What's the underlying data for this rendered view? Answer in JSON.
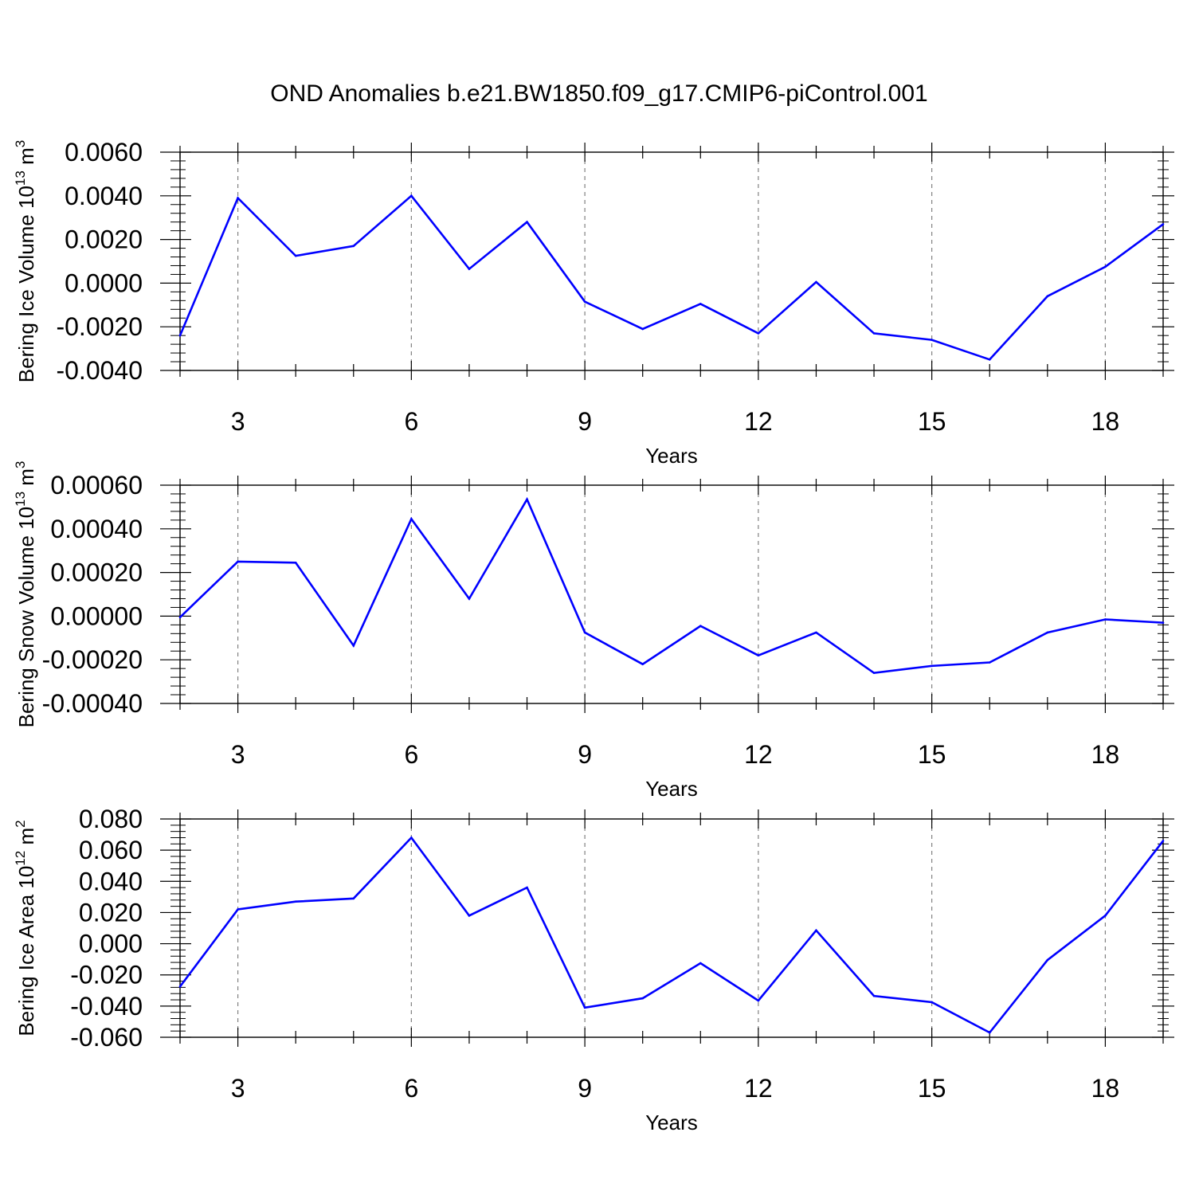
{
  "title": "OND Anomalies b.e21.BW1850.f09_g17.CMIP6-piControl.001",
  "colors": {
    "series": "#0000ff",
    "axes": "#000000",
    "grid": "#808080"
  },
  "chart_data": [
    {
      "type": "line",
      "ylabel": "Bering Ice Volume 10",
      "ylabel_exp": "13",
      "ylabel_unit": " m",
      "ylabel_unit_exp": "3",
      "xlabel": "Years",
      "xlim": [
        2,
        19
      ],
      "ylim": [
        -0.004,
        0.006
      ],
      "xticks": [
        3,
        6,
        9,
        12,
        15,
        18
      ],
      "x_tick_labels": [
        "3",
        "6",
        "9",
        "12",
        "15",
        "18"
      ],
      "yticks": [
        -0.004,
        -0.002,
        0.0,
        0.002,
        0.004,
        0.006
      ],
      "y_tick_labels": [
        "-0.0040",
        "-0.0020",
        "0.0000",
        "0.0020",
        "0.0040",
        "0.0060"
      ],
      "x_grid": true,
      "x": [
        2,
        3,
        4,
        5,
        6,
        7,
        8,
        9,
        10,
        11,
        12,
        13,
        14,
        15,
        16,
        17,
        18,
        19
      ],
      "values": [
        -0.0024,
        0.0039,
        0.00125,
        0.0017,
        0.004,
        0.00065,
        0.0028,
        -0.00085,
        -0.0021,
        -0.00095,
        -0.0023,
        5e-05,
        -0.0023,
        -0.0026,
        -0.0035,
        -0.0006,
        0.00075,
        0.0027
      ]
    },
    {
      "type": "line",
      "ylabel": "Bering Snow Volume 10",
      "ylabel_exp": "13",
      "ylabel_unit": " m",
      "ylabel_unit_exp": "3",
      "xlabel": "Years",
      "xlim": [
        2,
        19
      ],
      "ylim": [
        -0.0004,
        0.0006
      ],
      "xticks": [
        3,
        6,
        9,
        12,
        15,
        18
      ],
      "x_tick_labels": [
        "3",
        "6",
        "9",
        "12",
        "15",
        "18"
      ],
      "yticks": [
        -0.0004,
        -0.0002,
        0.0,
        0.0002,
        0.0004,
        0.0006
      ],
      "y_tick_labels": [
        "-0.00040",
        "-0.00020",
        "0.00000",
        "0.00020",
        "0.00040",
        "0.00060"
      ],
      "x_grid": true,
      "x": [
        2,
        3,
        4,
        5,
        6,
        7,
        8,
        9,
        10,
        11,
        12,
        13,
        14,
        15,
        16,
        17,
        18,
        19
      ],
      "values": [
        -5e-06,
        0.00025,
        0.000245,
        -0.000135,
        0.000445,
        8e-05,
        0.000535,
        -7.5e-05,
        -0.00022,
        -4.5e-05,
        -0.00018,
        -7.5e-05,
        -0.00026,
        -0.000228,
        -0.000212,
        -7.5e-05,
        -1.5e-05,
        -3e-05
      ]
    },
    {
      "type": "line",
      "ylabel": "Bering Ice Area 10",
      "ylabel_exp": "12",
      "ylabel_unit": " m",
      "ylabel_unit_exp": "2",
      "xlabel": "Years",
      "xlim": [
        2,
        19
      ],
      "ylim": [
        -0.06,
        0.08
      ],
      "xticks": [
        3,
        6,
        9,
        12,
        15,
        18
      ],
      "x_tick_labels": [
        "3",
        "6",
        "9",
        "12",
        "15",
        "18"
      ],
      "yticks": [
        -0.06,
        -0.04,
        -0.02,
        0.0,
        0.02,
        0.04,
        0.06,
        0.08
      ],
      "y_tick_labels": [
        "-0.060",
        "-0.040",
        "-0.020",
        "0.000",
        "0.020",
        "0.040",
        "0.060",
        "0.080"
      ],
      "x_grid": true,
      "x": [
        2,
        3,
        4,
        5,
        6,
        7,
        8,
        9,
        10,
        11,
        12,
        13,
        14,
        15,
        16,
        17,
        18,
        19
      ],
      "values": [
        -0.0275,
        0.022,
        0.027,
        0.029,
        0.068,
        0.018,
        0.036,
        -0.041,
        -0.035,
        -0.0125,
        -0.0365,
        0.0085,
        -0.0335,
        -0.0375,
        -0.057,
        -0.0105,
        0.018,
        0.066
      ]
    }
  ]
}
